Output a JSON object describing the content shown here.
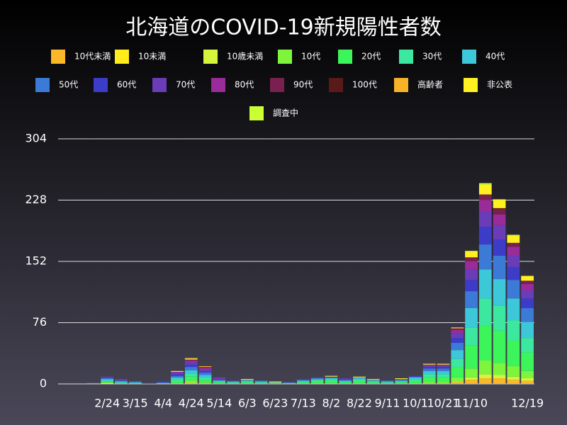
{
  "chart_data": {
    "type": "stacked-bar",
    "title": "北海道のCOVID-19新規陽性者数",
    "categories": [
      null,
      null,
      null,
      "2/24",
      null,
      "3/15",
      null,
      "4/4",
      null,
      "4/24",
      null,
      "5/14",
      null,
      "6/3",
      null,
      "6/23",
      null,
      "7/13",
      null,
      "8/2",
      null,
      "8/22",
      null,
      "9/11",
      null,
      "10/1",
      null,
      "10/21",
      null,
      "11/10",
      null,
      null,
      null,
      "12/19"
    ],
    "ylim": [
      0,
      304
    ],
    "yticks": [
      0,
      76,
      152,
      228,
      304
    ],
    "grid": true,
    "series": [
      {
        "name": "10代未満",
        "color": "#fbb829",
        "values": [
          0,
          0,
          0,
          0,
          0,
          0,
          0,
          0,
          0,
          1,
          1,
          0,
          0,
          0,
          0,
          0,
          0,
          0,
          0,
          0,
          0,
          0,
          0,
          0,
          0,
          0,
          1,
          1,
          2,
          5,
          7,
          7,
          5,
          4
        ]
      },
      {
        "name": "10未満",
        "color": "#ffec1a",
        "values": [
          0,
          0,
          0,
          1,
          0,
          0,
          0,
          0,
          0,
          0,
          0,
          0,
          0,
          0,
          0,
          0,
          0,
          0,
          0,
          0,
          0,
          0,
          0,
          0,
          0,
          0,
          0,
          0,
          0,
          0,
          0,
          0,
          0,
          0
        ]
      },
      {
        "name": "10歳未満",
        "color": "#d4f53c",
        "values": [
          0,
          0,
          0,
          0,
          0,
          0,
          0,
          0,
          0,
          1,
          0,
          0,
          0,
          0,
          0,
          0,
          0,
          0,
          0,
          0,
          0,
          0,
          0,
          0,
          0,
          0,
          0,
          0,
          1,
          3,
          5,
          4,
          4,
          3
        ]
      },
      {
        "name": "10代",
        "color": "#7ef53c",
        "values": [
          0,
          0,
          0,
          1,
          0,
          0,
          0,
          0,
          1,
          2,
          1,
          0,
          0,
          0,
          0,
          0,
          0,
          0,
          1,
          1,
          0,
          1,
          0,
          0,
          0,
          1,
          2,
          2,
          5,
          11,
          17,
          15,
          13,
          9
        ]
      },
      {
        "name": "20代",
        "color": "#3cf55a",
        "values": [
          0,
          0,
          0,
          1,
          1,
          1,
          0,
          1,
          3,
          5,
          3,
          2,
          1,
          2,
          1,
          1,
          1,
          2,
          3,
          3,
          2,
          3,
          2,
          1,
          2,
          3,
          5,
          5,
          13,
          29,
          43,
          40,
          32,
          23
        ]
      },
      {
        "name": "30代",
        "color": "#3ce8a0",
        "values": [
          0,
          0,
          0,
          1,
          1,
          0,
          0,
          0,
          2,
          4,
          3,
          1,
          1,
          1,
          1,
          0,
          0,
          1,
          1,
          2,
          1,
          2,
          1,
          1,
          1,
          2,
          4,
          4,
          10,
          22,
          34,
          31,
          25,
          18
        ]
      },
      {
        "name": "40代",
        "color": "#3cc8d8",
        "values": [
          0,
          0,
          1,
          2,
          1,
          1,
          0,
          0,
          2,
          4,
          3,
          1,
          1,
          1,
          1,
          1,
          0,
          1,
          1,
          1,
          1,
          1,
          1,
          1,
          1,
          2,
          4,
          4,
          11,
          24,
          36,
          33,
          27,
          20
        ]
      },
      {
        "name": "50代",
        "color": "#3c7ad8",
        "values": [
          0,
          0,
          0,
          1,
          1,
          1,
          1,
          1,
          2,
          4,
          3,
          1,
          0,
          1,
          1,
          0,
          1,
          1,
          1,
          1,
          1,
          1,
          1,
          1,
          1,
          1,
          3,
          3,
          9,
          21,
          31,
          29,
          23,
          17
        ]
      },
      {
        "name": "60代",
        "color": "#3c3cc8",
        "values": [
          0,
          0,
          0,
          1,
          1,
          0,
          0,
          1,
          2,
          3,
          2,
          1,
          0,
          0,
          0,
          0,
          0,
          1,
          0,
          1,
          1,
          0,
          0,
          0,
          0,
          1,
          2,
          2,
          6,
          14,
          22,
          20,
          16,
          12
        ]
      },
      {
        "name": "70代",
        "color": "#6a3cb8",
        "values": [
          0,
          0,
          0,
          1,
          0,
          0,
          0,
          0,
          2,
          3,
          2,
          1,
          1,
          0,
          0,
          0,
          0,
          0,
          1,
          0,
          1,
          0,
          0,
          0,
          1,
          0,
          2,
          2,
          6,
          13,
          19,
          18,
          14,
          10
        ]
      },
      {
        "name": "80代",
        "color": "#9a2c9a",
        "values": [
          0,
          0,
          0,
          0,
          1,
          0,
          0,
          0,
          1,
          2,
          2,
          1,
          0,
          0,
          0,
          0,
          0,
          0,
          0,
          0,
          0,
          0,
          0,
          0,
          0,
          0,
          1,
          1,
          4,
          10,
          14,
          13,
          11,
          8
        ]
      },
      {
        "name": "90代",
        "color": "#7a2050",
        "values": [
          0,
          0,
          0,
          0,
          0,
          0,
          0,
          0,
          0,
          1,
          1,
          0,
          0,
          0,
          0,
          0,
          0,
          0,
          0,
          0,
          0,
          0,
          0,
          0,
          0,
          0,
          0,
          0,
          2,
          5,
          7,
          7,
          5,
          4
        ]
      },
      {
        "name": "100代",
        "color": "#5a1a1a",
        "values": [
          0,
          0,
          0,
          0,
          0,
          0,
          0,
          0,
          0,
          0,
          0,
          0,
          0,
          0,
          0,
          0,
          0,
          0,
          0,
          0,
          0,
          0,
          0,
          0,
          0,
          0,
          0,
          0,
          0,
          0,
          0,
          1,
          0,
          0
        ]
      },
      {
        "name": "高齢者",
        "color": "#f7b22a",
        "values": [
          0,
          0,
          0,
          0,
          0,
          0,
          0,
          0,
          0,
          1,
          1,
          0,
          0,
          0,
          0,
          0,
          0,
          0,
          0,
          0,
          0,
          0,
          0,
          0,
          0,
          0,
          0,
          0,
          0,
          0,
          0,
          0,
          0,
          0
        ]
      },
      {
        "name": "非公表",
        "color": "#fff020",
        "values": [
          0,
          0,
          0,
          0,
          0,
          0,
          0,
          0,
          1,
          1,
          0,
          0,
          0,
          1,
          0,
          1,
          0,
          0,
          0,
          1,
          0,
          1,
          1,
          0,
          1,
          0,
          1,
          1,
          1,
          8,
          12,
          11,
          9,
          6
        ]
      },
      {
        "name": "調査中",
        "color": "#ccff33",
        "values": [
          0,
          0,
          0,
          0,
          0,
          0,
          0,
          0,
          0,
          0,
          0,
          0,
          0,
          0,
          0,
          0,
          0,
          0,
          0,
          0,
          0,
          0,
          0,
          0,
          0,
          0,
          0,
          0,
          0,
          0,
          2,
          0,
          1,
          0
        ]
      }
    ]
  }
}
